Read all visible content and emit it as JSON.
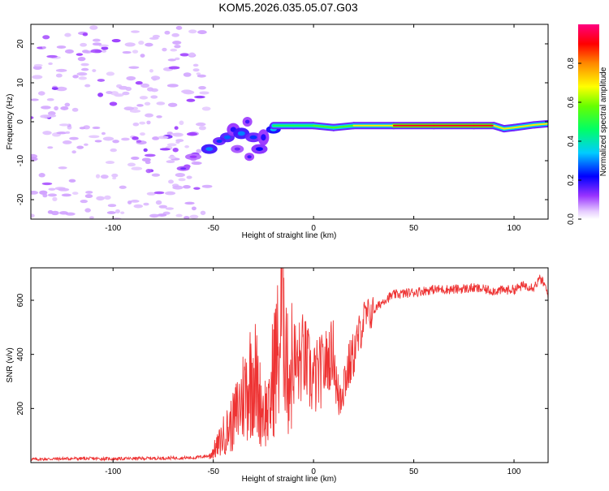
{
  "title": "KOM5.2026.035.05.07.G03",
  "chart_data": [
    {
      "type": "heatmap",
      "name": "spectrogram",
      "title": "KOM5.2026.035.05.07.G03",
      "xlabel": "Height of straight line (km)",
      "ylabel": "Frequency (Hz)",
      "xlim": [
        -141,
        117
      ],
      "ylim": [
        -25,
        25
      ],
      "xticks": [
        -100,
        -50,
        0,
        50,
        100
      ],
      "yticks": [
        -20,
        -10,
        0,
        10,
        20
      ],
      "grid": false,
      "colorbar": {
        "label": "Normalized spectral amplitude",
        "range": [
          0.0,
          1.0
        ],
        "ticks": [
          "0.0",
          "0.2",
          "0.4",
          "0.6",
          "0.8"
        ],
        "colors": [
          "#d9b3ff",
          "#6600ff",
          "#0000ff",
          "#00e0ff",
          "#00ff00",
          "#ffff00",
          "#ff8800",
          "#ff0000",
          "#ff0080"
        ]
      },
      "description_points": [
        {
          "x": -141,
          "y": 0,
          "level": 0.1
        },
        {
          "x": -60,
          "y": 0,
          "level": 0.1
        },
        {
          "x": -53,
          "y": -7,
          "level": 0.3
        },
        {
          "x": -45,
          "y": -5,
          "level": 0.3
        },
        {
          "x": -35,
          "y": -3,
          "level": 0.3
        },
        {
          "x": -25,
          "y": -6,
          "level": 0.2
        },
        {
          "x": -18,
          "y": -1,
          "level": 0.4
        },
        {
          "x": -10,
          "y": -1,
          "level": 0.5
        },
        {
          "x": 0,
          "y": -1,
          "level": 0.6
        },
        {
          "x": 25,
          "y": -1,
          "level": 0.85
        },
        {
          "x": 50,
          "y": -1,
          "level": 0.95
        },
        {
          "x": 75,
          "y": -1,
          "level": 0.9
        },
        {
          "x": 100,
          "y": -1,
          "level": 0.85
        },
        {
          "x": 117,
          "y": 0,
          "level": 0.6
        }
      ],
      "ridge": [
        [
          -20,
          -1
        ],
        [
          -10,
          -1
        ],
        [
          0,
          -1
        ],
        [
          10,
          -1.5
        ],
        [
          20,
          -1
        ],
        [
          40,
          -1
        ],
        [
          60,
          -1
        ],
        [
          80,
          -1
        ],
        [
          90,
          -1
        ],
        [
          95,
          -1.8
        ],
        [
          100,
          -1.5
        ],
        [
          110,
          -0.8
        ],
        [
          117,
          -0.5
        ]
      ]
    },
    {
      "type": "line",
      "name": "snr",
      "xlabel": "Height of straight line (km)",
      "ylabel": "SNR (v/v)",
      "xlim": [
        -141,
        117
      ],
      "ylim": [
        0,
        720
      ],
      "xticks": [
        -100,
        -50,
        0,
        50,
        100
      ],
      "yticks": [
        200,
        400,
        600
      ],
      "color": "#ee3333",
      "grid": false,
      "series": [
        {
          "name": "SNR",
          "x": [
            -141,
            -120,
            -100,
            -80,
            -60,
            -52,
            -48,
            -45,
            -40,
            -35,
            -32,
            -30,
            -27,
            -25,
            -22,
            -20,
            -17,
            -15,
            -13,
            -10,
            -8,
            -5,
            -2,
            0,
            5,
            10,
            12,
            15,
            20,
            25,
            30,
            35,
            40,
            50,
            60,
            70,
            80,
            90,
            100,
            105,
            110,
            113,
            115,
            117
          ],
          "y": [
            12,
            15,
            14,
            16,
            18,
            25,
            60,
            100,
            150,
            250,
            300,
            350,
            230,
            200,
            180,
            350,
            420,
            700,
            320,
            380,
            350,
            400,
            330,
            300,
            350,
            420,
            230,
            300,
            400,
            530,
            560,
            600,
            620,
            630,
            640,
            640,
            645,
            635,
            640,
            655,
            650,
            680,
            660,
            620
          ]
        }
      ]
    }
  ]
}
